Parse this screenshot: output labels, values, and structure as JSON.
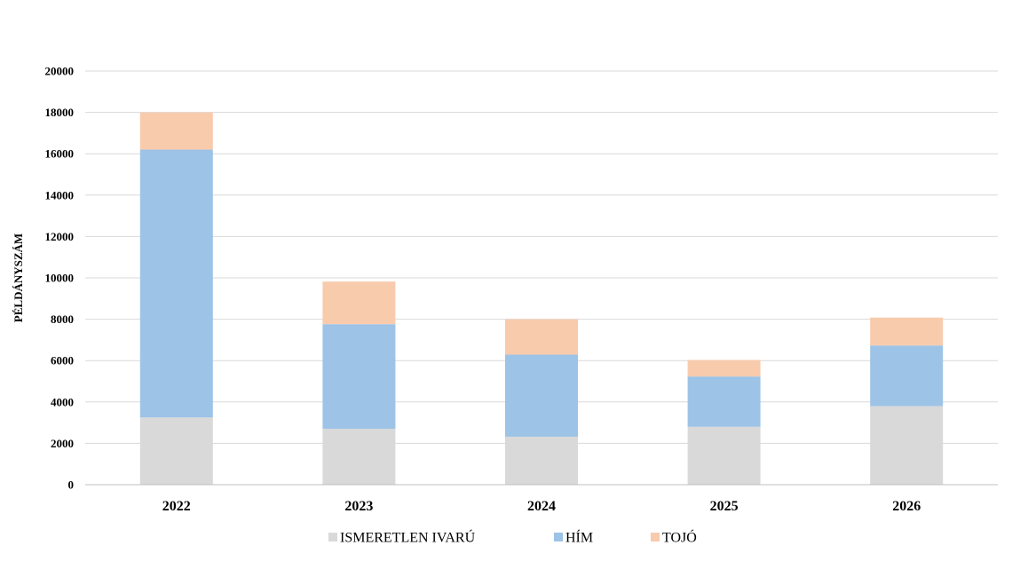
{
  "chart_data": {
    "type": "bar",
    "stacked": true,
    "title": "",
    "xlabel": "",
    "ylabel": "PÉLDÁNYSZÁM",
    "ylim": [
      0,
      20000
    ],
    "yticks": [
      0,
      2000,
      4000,
      6000,
      8000,
      10000,
      12000,
      14000,
      16000,
      18000,
      20000
    ],
    "categories": [
      "2022",
      "2023",
      "2024",
      "2025",
      "2026"
    ],
    "series": [
      {
        "name": "ISMERETLEN IVARÚ",
        "color": "#d9d9d9",
        "values": [
          3250,
          2700,
          2320,
          2800,
          3800
        ]
      },
      {
        "name": "HÍM",
        "color": "#9dc3e6",
        "values": [
          12950,
          5060,
          3970,
          2430,
          2930
        ]
      },
      {
        "name": "TOJÓ",
        "color": "#f8cbad",
        "values": [
          1800,
          2060,
          1710,
          800,
          1350
        ]
      }
    ],
    "grid": true,
    "legend": "bottom"
  }
}
